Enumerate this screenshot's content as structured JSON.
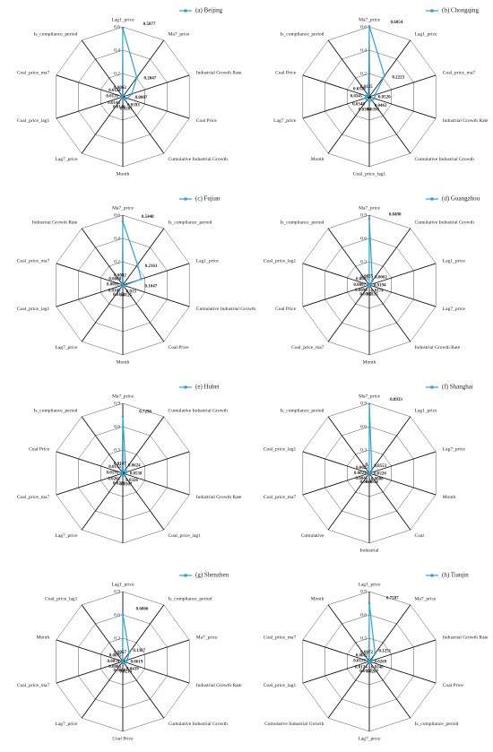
{
  "chart_data": [
    {
      "type": "radar",
      "categories": [
        "Lag1_price",
        "Ma7_price",
        "Industrial Growth Rate",
        "Coal Price",
        "Cumulative Industrial Growth",
        "Month",
        "Lag7_price",
        "Coal_price_lag1",
        "Coal_price_ma7",
        "Is_compliance_period"
      ],
      "series": [
        {
          "name": "(a) Beijing",
          "color": "#2aa3d8",
          "values": [
            0.5877,
            0.2047,
            0.0807,
            0.0393,
            0.0281,
            0.0146,
            0.0143,
            0.0131,
            0.0114,
            0.0062
          ]
        }
      ],
      "ylim": [
        0,
        0.6
      ],
      "yticks": [
        0.2,
        0.4,
        0.6
      ]
    },
    {
      "type": "radar",
      "categories": [
        "Ma7_price",
        "Lag1_price",
        "Coal_price_ma7",
        "Industrial Growth Rate",
        "Cumulative Industrial Growth",
        "Coal_price_lag1",
        "Month",
        "Lag7_price",
        "Coal Price",
        "Is_compliance_period"
      ],
      "series": [
        {
          "name": "(b) Chongqing",
          "color": "#2aa3d8",
          "values": [
            0.6054,
            0.2223,
            0.052,
            0.0463,
            0.0398,
            0.0396,
            0.0348,
            0.0345,
            0.0319,
            0.0125
          ]
        }
      ],
      "value_labels": [
        "0.6054",
        "0.2223",
        "0.0520",
        "0.0463",
        "0.0398",
        "0.0396",
        "0.0348",
        "0.0345",
        "0.0319",
        "0.0125"
      ],
      "ylim": [
        0,
        0.6
      ],
      "yticks": [
        0.2,
        0.4,
        0.6
      ]
    },
    {
      "type": "radar",
      "categories": [
        "Ma7_price",
        "Is_compliance_period",
        "Lag1_price",
        "Cumulative Industrial Growth",
        "Coal Price",
        "Month",
        "Lag7_price",
        "Coal_price_lag1",
        "Coal_price_ma7",
        "Industrial Growth Rate"
      ],
      "series": [
        {
          "name": "(c) Fujian",
          "color": "#2aa3d8",
          "values": [
            0.5448,
            0.2161,
            0.1647,
            0.013,
            0.0125,
            0.0122,
            0.0105,
            0.0091,
            0.0088,
            0.0082
          ]
        }
      ],
      "ylim": [
        0,
        0.6
      ],
      "yticks": [
        0.2,
        0.4,
        0.6
      ]
    },
    {
      "type": "radar",
      "categories": [
        "Ma7_price",
        "Cumulative Industrial Growth",
        "Lag1_price",
        "Lag7_price",
        "Industrial Growth Rate",
        "Month",
        "Coal_price_ma7",
        "Coal Price",
        "Coal_price_lag1",
        "Is_compliance_period"
      ],
      "series": [
        {
          "name": "(d) Guangzhou",
          "color": "#2aa3d8",
          "values": [
            0.8498,
            0.0662,
            0.0194,
            -0.0174,
            0.0115,
            0.0102,
            0.0099,
            0.0087,
            0.0043,
            0.0025
          ]
        }
      ],
      "ylim": [
        0,
        0.9
      ],
      "yticks": [
        0.3,
        0.6,
        0.9
      ]
    },
    {
      "type": "radar",
      "categories": [
        "Ma7_price",
        "Cumulative Industrial Growth",
        null,
        "Industrial Growth Rate",
        "Coal_price_lag1",
        null,
        "Lag7_price",
        "Coal_price_ma7",
        "Coal Price",
        "Is_compliance_period"
      ],
      "series": [
        {
          "name": "(e) Hubei",
          "color": "#2aa3d8",
          "values": [
            0.7296,
            0.0624,
            0.0538,
            0.0326,
            0.0307,
            0.0226,
            0.0202,
            0.0191,
            0.0155,
            0.0147
          ]
        }
      ],
      "ylim": [
        0,
        0.9
      ],
      "yticks": [
        0.3,
        0.6,
        0.9
      ]
    },
    {
      "type": "radar",
      "categories": [
        "Ma7_price",
        "Lag1_price",
        "Lag7_price",
        "Month",
        "Coal",
        "Industrial",
        "Cumulative",
        "Coal_price_ma7",
        "Coal_price_lag1",
        "Is_compliance_period"
      ],
      "series": [
        {
          "name": "(f) Shanghai",
          "color": "#2aa3d8",
          "values": [
            0.8933,
            0.0553,
            0.0226,
            -0.0088,
            0.0054,
            0.0048,
            0.0045,
            0.0029,
            0.0025,
            0.002
          ]
        }
      ],
      "value_labels": [
        "0.8933",
        "0.0553",
        "0.0226",
        "-0.0088",
        "0.0054",
        "0.0048",
        "0.0045",
        "0.0029",
        "0.0025",
        "0."
      ],
      "ylim": [
        0,
        0.9
      ],
      "yticks": [
        0.3,
        0.6,
        0.9
      ]
    },
    {
      "type": "radar",
      "categories": [
        "Lag1_price",
        "Is_compliance_period",
        "Ma7_price",
        "Industrial Growth Rate",
        "Cumulative Industrial Growth",
        "Coal Price",
        "Lag7_price",
        "Coal_price_ma7",
        "Month",
        "Coal_price_lag1"
      ],
      "series": [
        {
          "name": "(g) Shenzhen",
          "color": "#2aa3d8",
          "values": [
            0.6066,
            0.1387,
            0.0619,
            0.0439,
            0.0213,
            0.0086,
            0.0085,
            0.0076,
            0.0075,
            0.0057
          ]
        }
      ],
      "ylim": [
        0,
        0.9
      ],
      "yticks": [
        0.3,
        0.6,
        0.9
      ]
    },
    {
      "type": "radar",
      "categories": [
        "Lag1_price",
        "Ma7_price",
        "Industrial Growth Rate",
        "Coal Price",
        "Is_compliance_period",
        "Lag7_price",
        "Cumulative Industrial Growth",
        "Coal_price_lag1",
        "Coal_price_ma7",
        "Month"
      ],
      "series": [
        {
          "name": "(h) Tianjin",
          "color": "#2aa3d8",
          "values": [
            0.7507,
            0.1251,
            0.0269,
            -0.0248,
            0.0207,
            0.0157,
            0.0124,
            0.0119,
            0.0082,
            0.0072
          ]
        }
      ],
      "ylim": [
        0,
        0.9
      ],
      "yticks": [
        0.3,
        0.6,
        0.9
      ]
    }
  ]
}
